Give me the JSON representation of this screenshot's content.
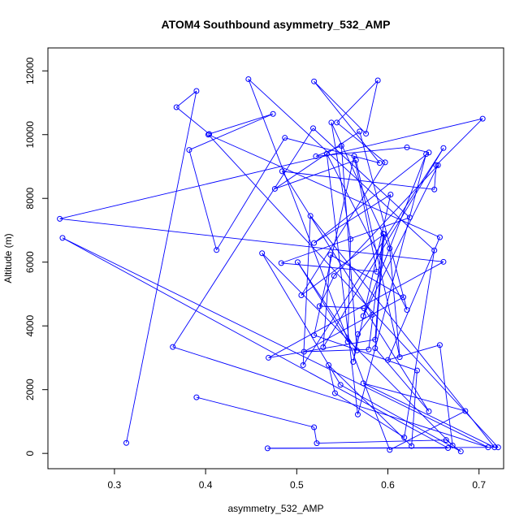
{
  "chart_data": {
    "type": "line",
    "title": "ATOM4 Southbound asymmetry_532_AMP",
    "xlabel": "asymmetry_532_AMP",
    "ylabel": "Altitude (m)",
    "xlim": [
      0.227,
      0.727
    ],
    "ylim": [
      -480,
      12720
    ],
    "xticks": [
      0.3,
      0.4,
      0.5,
      0.6,
      0.7
    ],
    "xtick_labels": [
      "0.3",
      "0.4",
      "0.5",
      "0.6",
      "0.7"
    ],
    "yticks": [
      0,
      2000,
      4000,
      6000,
      8000,
      10000,
      12000
    ],
    "ytick_labels": [
      "0",
      "2000",
      "4000",
      "6000",
      "8000",
      "10000",
      "12000"
    ],
    "grid": false,
    "legend": "none",
    "series": [
      {
        "color": "#0000ff",
        "marker": "open-circle",
        "x": [
          0.313,
          0.39,
          0.368,
          0.404,
          0.474,
          0.382,
          0.412,
          0.487,
          0.591,
          0.519,
          0.576,
          0.589,
          0.544,
          0.597,
          0.505,
          0.596,
          0.586,
          0.645,
          0.574,
          0.525,
          0.541,
          0.655,
          0.573,
          0.642,
          0.567,
          0.533,
          0.621,
          0.569,
          0.476,
          0.565,
          0.613,
          0.602,
          0.538,
          0.559,
          0.556,
          0.501,
          0.566,
          0.549,
          0.521,
          0.621,
          0.645,
          0.519,
          0.603,
          0.562,
          0.567,
          0.583,
          0.484,
          0.651,
          0.653,
          0.704,
          0.24,
          0.661,
          0.469,
          0.586,
          0.595,
          0.579,
          0.508,
          0.617,
          0.537,
          0.529,
          0.661,
          0.507,
          0.515,
          0.717,
          0.573,
          0.685,
          0.602,
          0.447,
          0.651,
          0.618,
          0.542,
          0.535,
          0.626,
          0.632,
          0.519,
          0.563,
          0.588,
          0.483,
          0.624,
          0.518,
          0.364,
          0.71,
          0.243,
          0.666,
          0.468,
          0.721,
          0.403,
          0.657,
          0.6,
          0.657,
          0.671,
          0.462,
          0.548,
          0.68,
          0.664,
          0.522,
          0.519,
          0.39
        ],
        "y": [
          330,
          11370,
          10860,
          10020,
          10650,
          9520,
          6380,
          9900,
          9110,
          11670,
          10030,
          11700,
          10380,
          9130,
          4960,
          6880,
          3300,
          1320,
          4550,
          4620,
          5570,
          9040,
          4310,
          9390,
          1220,
          9400,
          4500,
          10100,
          8300,
          9200,
          3020,
          6430,
          10380,
          6720,
          3500,
          6000,
          3230,
          9650,
          9320,
          9600,
          9440,
          6600,
          8120,
          2870,
          3740,
          4350,
          8850,
          8280,
          9040,
          10500,
          7360,
          6010,
          3000,
          3570,
          6890,
          3260,
          3190,
          4900,
          6230,
          3330,
          9580,
          2770,
          7450,
          190,
          2200,
          1330,
          110,
          11740,
          6370,
          500,
          1890,
          2770,
          230,
          2600,
          3710,
          9330,
          5700,
          5970,
          7400,
          10200,
          3340,
          190,
          6760,
          170,
          160,
          190,
          10000,
          6780,
          2930,
          3400,
          250,
          6280,
          2150,
          60,
          420,
          320,
          820,
          1760
        ]
      }
    ]
  }
}
